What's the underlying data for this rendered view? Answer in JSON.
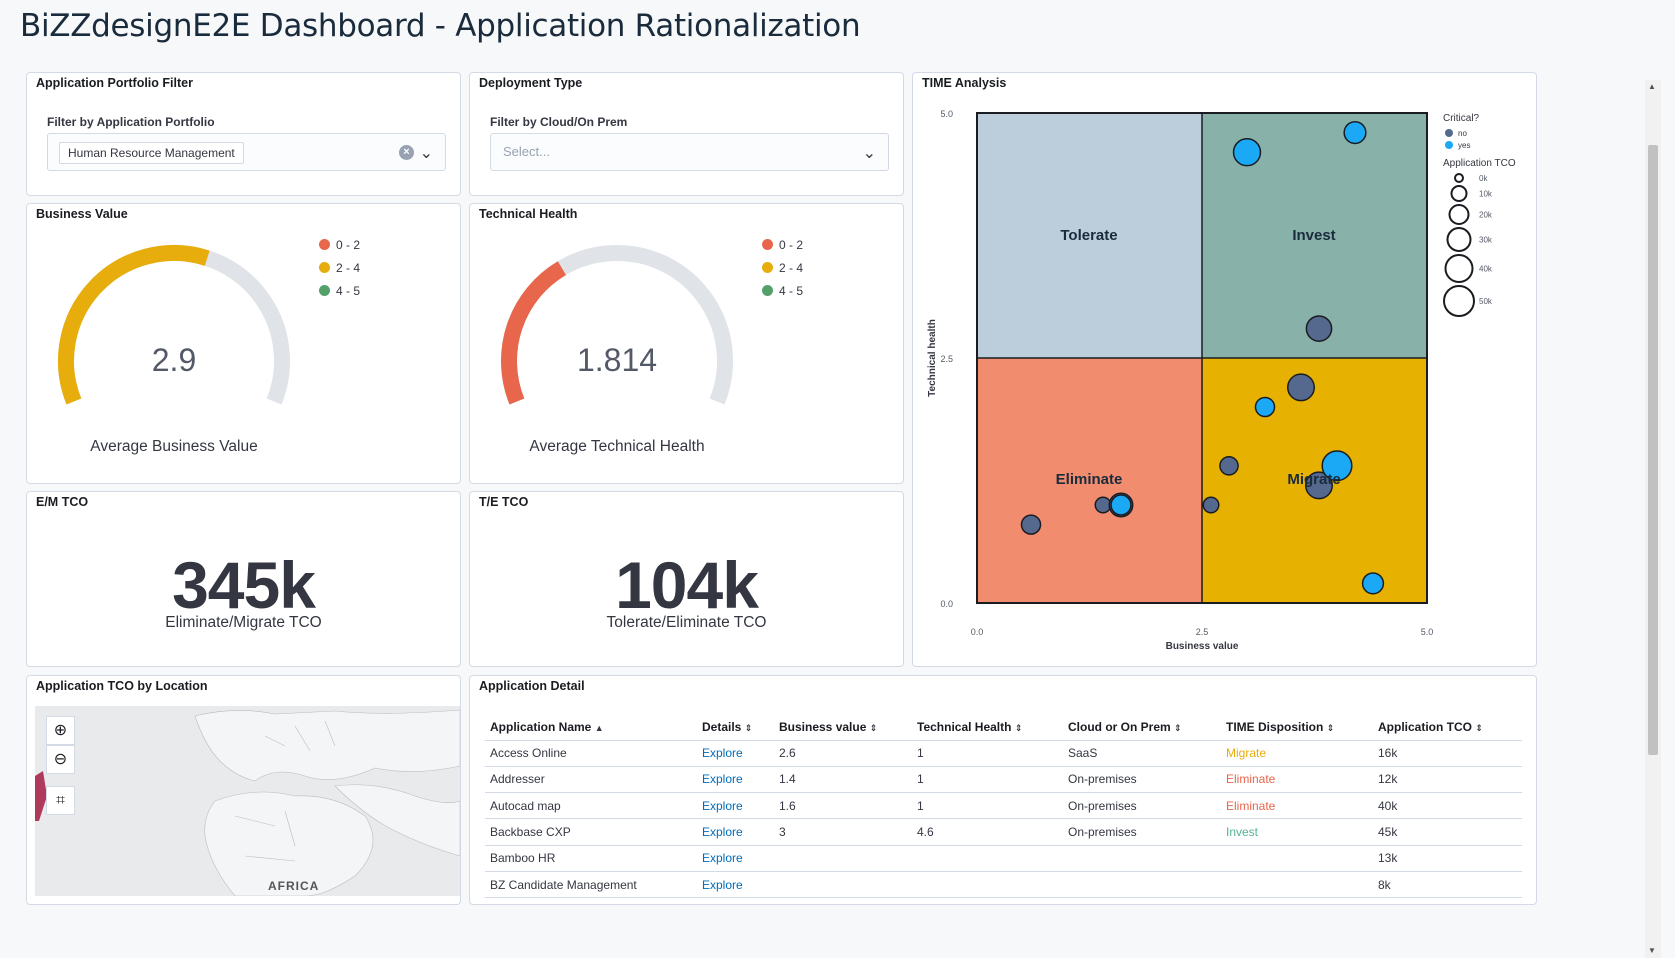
{
  "header": {
    "title": "BiZZdesignE2E Dashboard - Application Rationalization"
  },
  "colors": {
    "red": "#e7664c",
    "yellow": "#e6ad0c",
    "green": "#54b399",
    "blue_point": "#1ba9f5",
    "gray_point": "#6092c0"
  },
  "portfolio_filter": {
    "title": "Application Portfolio Filter",
    "label": "Filter by Application Portfolio",
    "selected": "Human Resource Management",
    "clear_icon": "clear-icon",
    "chevron_icon": "chevron-down-icon"
  },
  "deployment_filter": {
    "title": "Deployment Type",
    "label": "Filter by Cloud/On Prem",
    "placeholder": "Select..."
  },
  "business_value": {
    "title": "Business Value",
    "value": "2.9",
    "fraction": 0.58,
    "label": "Average Business Value",
    "legend": [
      "0 - 2",
      "2 - 4",
      "4 - 5"
    ]
  },
  "technical_health": {
    "title": "Technical Health",
    "value": "1.814",
    "fraction": 0.363,
    "label": "Average Technical Health",
    "legend": [
      "0 - 2",
      "2 - 4",
      "4 - 5"
    ]
  },
  "em_tco": {
    "title": "E/M TCO",
    "value": "345k",
    "label": "Eliminate/Migrate TCO"
  },
  "te_tco": {
    "title": "T/E TCO",
    "value": "104k",
    "label": "Tolerate/Eliminate TCO"
  },
  "time_analysis": {
    "title": "TIME Analysis",
    "xlabel": "Business value",
    "ylabel": "Technical health",
    "x_ticks": [
      "0.0",
      "2.5",
      "5.0"
    ],
    "y_ticks": [
      "0.0",
      "2.5",
      "5.0"
    ],
    "quadrants": [
      "Tolerate",
      "Invest",
      "Eliminate",
      "Migrate"
    ],
    "legend_critical_title": "Critical?",
    "legend_critical": [
      "no",
      "yes"
    ],
    "legend_tco_title": "Application TCO",
    "legend_tco": [
      "0k",
      "10k",
      "20k",
      "30k",
      "40k",
      "50k"
    ]
  },
  "chart_data": {
    "type": "scatter",
    "title": "TIME Analysis",
    "xlabel": "Business value",
    "ylabel": "Technical health",
    "xlim": [
      0,
      5
    ],
    "ylim": [
      0,
      5
    ],
    "series": [
      {
        "name": "no",
        "points": [
          {
            "x": 3.8,
            "y": 2.8,
            "size": 30
          },
          {
            "x": 3.6,
            "y": 2.2,
            "size": 33
          },
          {
            "x": 2.8,
            "y": 1.4,
            "size": 14
          },
          {
            "x": 3.8,
            "y": 1.2,
            "size": 33
          },
          {
            "x": 1.4,
            "y": 1.0,
            "size": 8
          },
          {
            "x": 2.6,
            "y": 1.0,
            "size": 8
          },
          {
            "x": 0.6,
            "y": 0.8,
            "size": 16
          },
          {
            "x": 1.6,
            "y": 1.0,
            "size": 26
          }
        ]
      },
      {
        "name": "yes",
        "points": [
          {
            "x": 4.2,
            "y": 4.8,
            "size": 22
          },
          {
            "x": 3.0,
            "y": 4.6,
            "size": 34
          },
          {
            "x": 3.2,
            "y": 2.0,
            "size": 16
          },
          {
            "x": 4.0,
            "y": 1.4,
            "size": 40
          },
          {
            "x": 1.6,
            "y": 1.0,
            "size": 18
          },
          {
            "x": 4.4,
            "y": 0.2,
            "size": 20
          }
        ]
      }
    ]
  },
  "map": {
    "title": "Application TCO by Location",
    "continent_label": "AFRICA",
    "buttons": [
      "zoom-in-icon",
      "zoom-out-icon",
      "crop-icon"
    ]
  },
  "detail": {
    "title": "Application Detail",
    "columns": [
      "Application Name",
      "Details",
      "Business value",
      "Technical Health",
      "Cloud or On Prem",
      "TIME Disposition",
      "Application TCO"
    ],
    "rows": [
      {
        "name": "Access Online",
        "details": "Explore",
        "bv": "2.6",
        "th": "1",
        "cloud": "SaaS",
        "time": "Migrate",
        "tco": "16k"
      },
      {
        "name": "Addresser",
        "details": "Explore",
        "bv": "1.4",
        "th": "1",
        "cloud": "On-premises",
        "time": "Eliminate",
        "tco": "12k"
      },
      {
        "name": "Autocad map",
        "details": "Explore",
        "bv": "1.6",
        "th": "1",
        "cloud": "On-premises",
        "time": "Eliminate",
        "tco": "40k"
      },
      {
        "name": "Backbase CXP",
        "details": "Explore",
        "bv": "3",
        "th": "4.6",
        "cloud": "On-premises",
        "time": "Invest",
        "tco": "45k"
      },
      {
        "name": "Bamboo HR",
        "details": "Explore",
        "bv": "",
        "th": "",
        "cloud": "",
        "time": "",
        "tco": "13k"
      },
      {
        "name": "BZ Candidate Management",
        "details": "Explore",
        "bv": "",
        "th": "",
        "cloud": "",
        "time": "",
        "tco": "8k"
      }
    ]
  }
}
